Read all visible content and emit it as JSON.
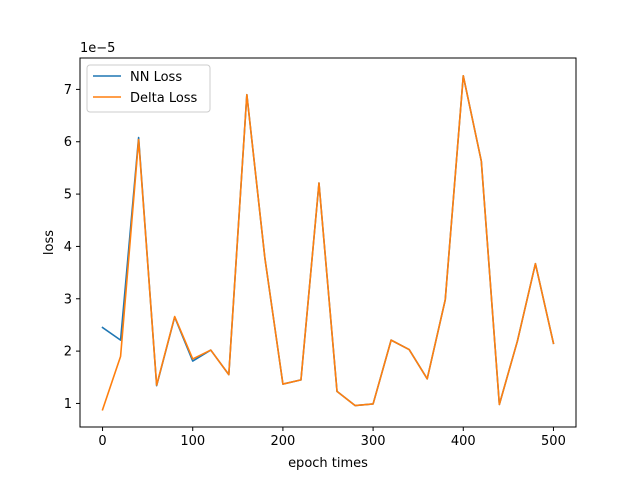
{
  "chart_data": {
    "type": "line",
    "xlabel": "epoch times",
    "ylabel": "loss",
    "y_offset_text": "1e−5",
    "xlim": [
      -25,
      525
    ],
    "ylim": [
      0.55,
      7.6
    ],
    "x_ticks": [
      0,
      100,
      200,
      300,
      400,
      500
    ],
    "y_ticks": [
      1,
      2,
      3,
      4,
      5,
      6,
      7
    ],
    "legend_position": "upper-left",
    "grid": false,
    "x": [
      0,
      20,
      40,
      60,
      80,
      100,
      120,
      140,
      160,
      180,
      200,
      220,
      240,
      260,
      280,
      300,
      320,
      340,
      360,
      380,
      400,
      420,
      440,
      460,
      480,
      500
    ],
    "series": [
      {
        "name": "NN Loss",
        "color": "#1f77b4",
        "values": [
          2.45,
          2.21,
          6.08,
          1.34,
          2.65,
          1.81,
          2.02,
          1.55,
          6.9,
          3.78,
          1.37,
          1.45,
          5.21,
          1.23,
          0.96,
          0.99,
          2.21,
          2.03,
          1.47,
          2.98,
          7.26,
          5.63,
          0.98,
          2.19,
          3.67,
          2.15
        ]
      },
      {
        "name": "Delta Loss",
        "color": "#ff7f0e",
        "values": [
          0.88,
          1.9,
          6.04,
          1.35,
          2.66,
          1.85,
          2.02,
          1.55,
          6.9,
          3.78,
          1.37,
          1.45,
          5.21,
          1.23,
          0.96,
          0.99,
          2.21,
          2.03,
          1.47,
          2.98,
          7.26,
          5.63,
          0.98,
          2.19,
          3.67,
          2.15
        ]
      }
    ]
  }
}
